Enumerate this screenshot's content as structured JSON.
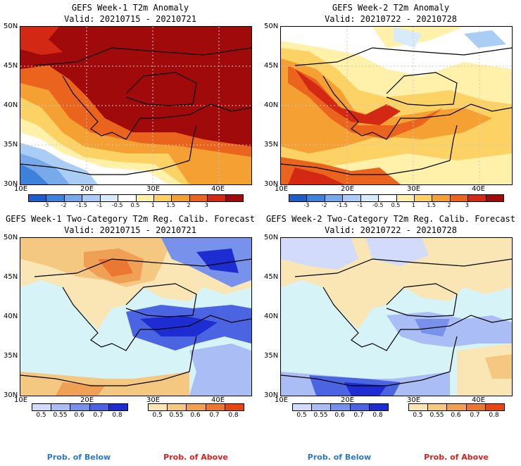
{
  "panels": [
    {
      "title": "GEFS Week-1 T2m Anomaly",
      "valid": "Valid: 20210715 - 20210721"
    },
    {
      "title": "GEFS Week-2 T2m Anomaly",
      "valid": "Valid: 20210722 - 20210728"
    },
    {
      "title": "GEFS Week-1 Two-Category T2m Reg. Calib. Forecast",
      "valid": "Valid: 20210715 - 20210721"
    },
    {
      "title": "GEFS Week-2 Two-Category T2m Reg. Calib. Forecast",
      "valid": "Valid: 20210722 - 20210728"
    }
  ],
  "axes": {
    "lat_labels": [
      "50N",
      "45N",
      "40N",
      "35N",
      "30N"
    ],
    "lon_labels": [
      "10E",
      "20E",
      "30E",
      "40E"
    ]
  },
  "anomaly_colorbar": {
    "labels": [
      "-3",
      "-2",
      "-1.5",
      "-1",
      "-0.5",
      "0.5",
      "1",
      "1.5",
      "2",
      "3"
    ],
    "colors": [
      "#1e5ec8",
      "#3c82dc",
      "#78aaeb",
      "#aacdf5",
      "#d7ebfa",
      "#ffffff",
      "#fff0aa",
      "#fcd264",
      "#f5a032",
      "#eb641e",
      "#d22814",
      "#a00a0a"
    ]
  },
  "prob_colorbar": {
    "below_labels": [
      "0.5",
      "0.55",
      "0.6",
      "0.7",
      "0.8"
    ],
    "below_colors": [
      "#d2dcfa",
      "#aabef5",
      "#7891eb",
      "#4b64e1",
      "#1e2dd2"
    ],
    "above_labels": [
      "0.5",
      "0.55",
      "0.6",
      "0.7",
      "0.8"
    ],
    "above_colors": [
      "#fae6b4",
      "#f5c882",
      "#f0a055",
      "#eb7832",
      "#e64614"
    ]
  },
  "footer": {
    "below_label": "Prob. of Below",
    "above_label": "Prob. of Above",
    "below_color": "#2878d2",
    "above_color": "#dc1e1e"
  },
  "map_colors": {
    "sea_prob": "#d6f4f8",
    "land_neutral": "#ffffff"
  }
}
